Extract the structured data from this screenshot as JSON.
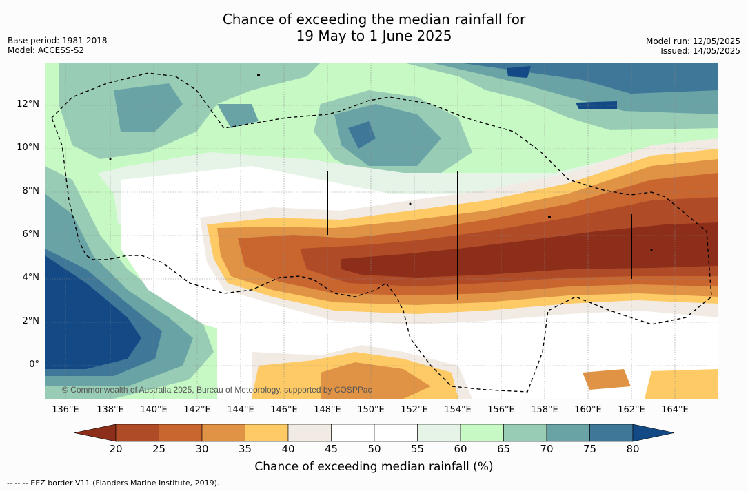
{
  "title_line1": "Chance of exceeding the median rainfall for",
  "title_line2": "19 May to 1 June 2025",
  "meta_left": [
    "Base period: 1981-2018",
    "Model: ACCESS-S2"
  ],
  "meta_right": [
    "Model run: 12/05/2025",
    "Issued: 14/05/2025"
  ],
  "lon_ticks": [
    "136°E",
    "138°E",
    "140°E",
    "142°E",
    "144°E",
    "146°E",
    "148°E",
    "150°E",
    "152°E",
    "154°E",
    "156°E",
    "158°E",
    "160°E",
    "162°E",
    "164°E"
  ],
  "lat_ticks": [
    "12°N",
    "10°N",
    "8°N",
    "6°N",
    "4°N",
    "2°N",
    "0°"
  ],
  "copyright": "© Commonwealth of Australia 2025, Bureau of Meteorology, supported by COSPPac",
  "colorbar": {
    "labels": [
      "20",
      "25",
      "30",
      "35",
      "40",
      "45",
      "50",
      "55",
      "60",
      "65",
      "70",
      "75",
      "80"
    ],
    "colors": [
      "#8c2e1a",
      "#b04b28",
      "#c9652f",
      "#e09245",
      "#fdca66",
      "#f1ebe4",
      "#ffffff",
      "#ffffff",
      "#e6f4e7",
      "#c7f9c5",
      "#98ccb5",
      "#6aa3a6",
      "#3e7797",
      "#134a86"
    ],
    "title": "Chance of exceeding median rainfall (%)"
  },
  "legend_note": "--  --  -- EEZ border V11 (Flanders Marine Institute, 2019)."
}
